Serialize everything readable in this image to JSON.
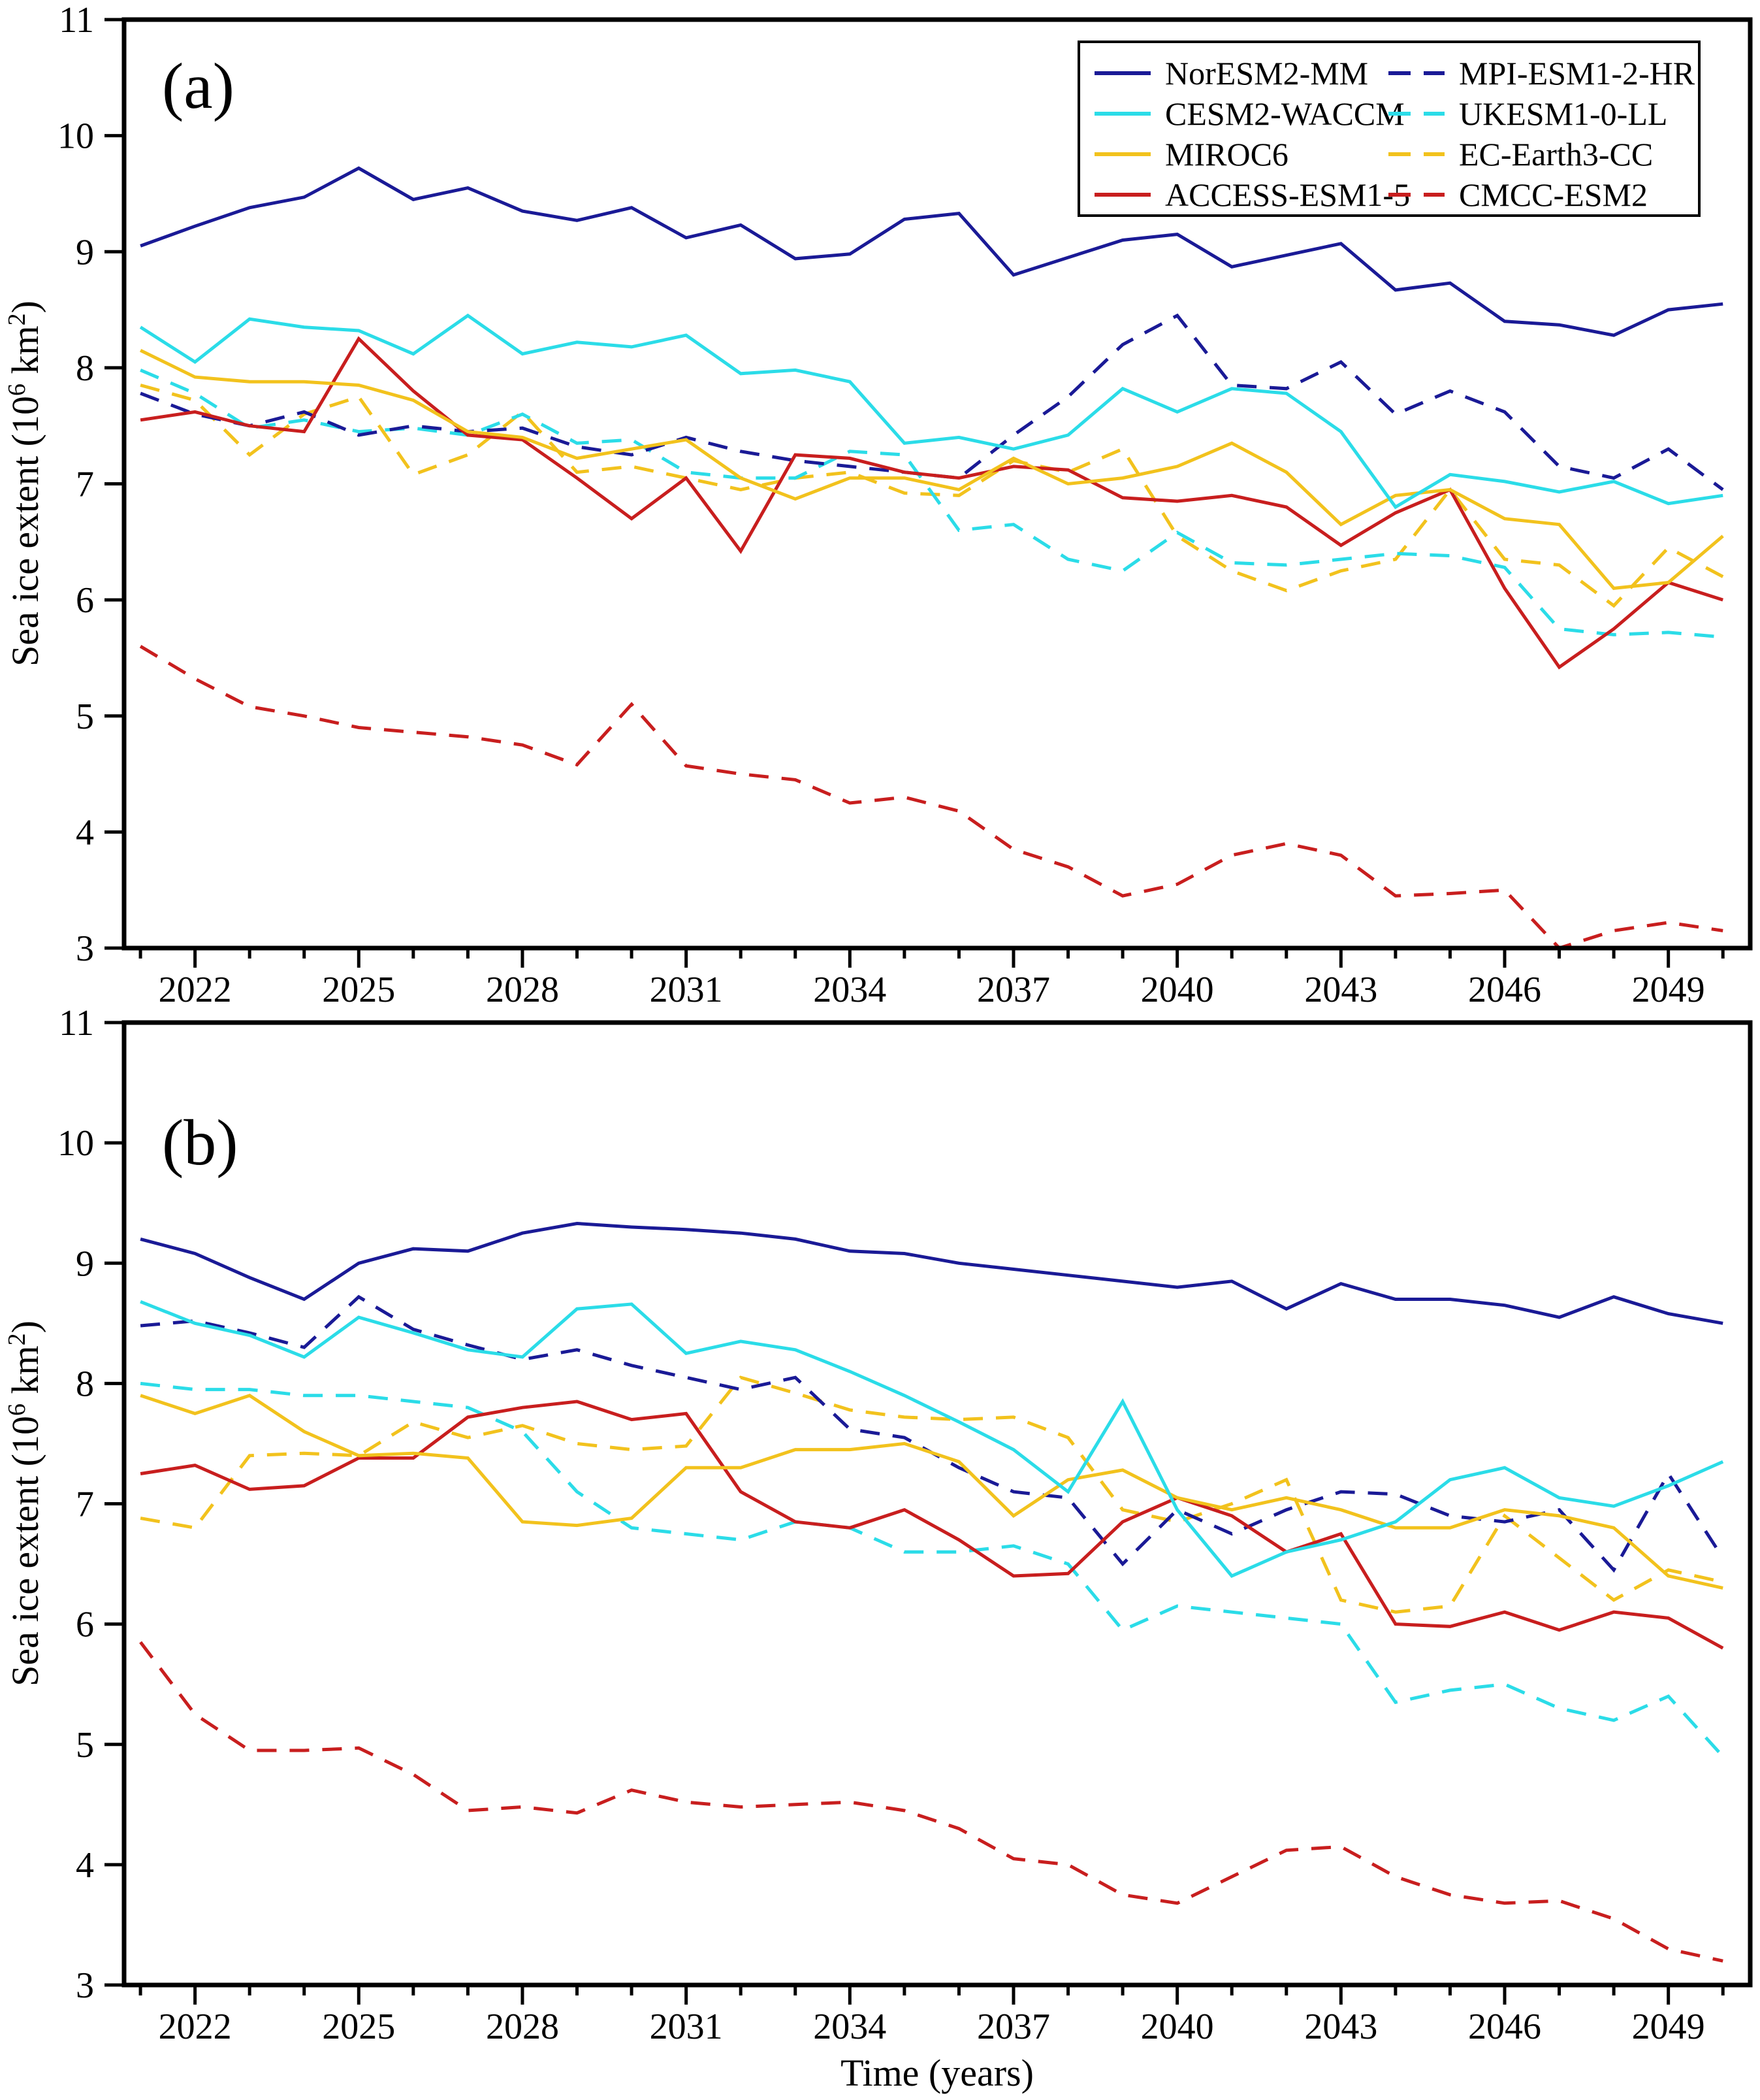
{
  "figure": {
    "x_axis_label": "Time (years)",
    "y_axis_label_parts": [
      "Sea ice extent (10",
      "6",
      " km",
      "2",
      ")"
    ],
    "background_color": "#ffffff",
    "axis_color": "#000000"
  },
  "legend": {
    "position": "top-right-panel-a",
    "columns": [
      [
        {
          "label": "NorESM2-MM",
          "color": "#1a1a96",
          "dashed": false
        },
        {
          "label": "CESM2-WACCM",
          "color": "#2bdce8",
          "dashed": false
        },
        {
          "label": "MIROC6",
          "color": "#f2c21d",
          "dashed": false
        },
        {
          "label": "ACCESS-ESM1-5",
          "color": "#c81e1e",
          "dashed": false
        }
      ],
      [
        {
          "label": "MPI-ESM1-2-HR",
          "color": "#1a1a96",
          "dashed": true
        },
        {
          "label": "UKESM1-0-LL",
          "color": "#2bdce8",
          "dashed": true
        },
        {
          "label": "EC-Earth3-CC",
          "color": "#f2c21d",
          "dashed": true
        },
        {
          "label": "CMCC-ESM2",
          "color": "#c81e1e",
          "dashed": true
        }
      ]
    ]
  },
  "chart_data": [
    {
      "type": "line",
      "panel_label": "(a)",
      "xlabel": "",
      "ylabel": "Sea ice extent (10^6 km^2)",
      "xlim": [
        2020.7,
        2050.5
      ],
      "ylim": [
        3,
        11
      ],
      "y_ticks": [
        3,
        4,
        5,
        6,
        7,
        8,
        9,
        10,
        11
      ],
      "x_ticks_major": [
        2022,
        2025,
        2028,
        2031,
        2034,
        2037,
        2040,
        2043,
        2046,
        2049
      ],
      "x_tick_labels": [
        "2022",
        "2025",
        "2028",
        "2031",
        "2034",
        "2037",
        "2040",
        "2043",
        "2046",
        "2049"
      ],
      "x": [
        2021,
        2022,
        2023,
        2024,
        2025,
        2026,
        2027,
        2028,
        2029,
        2030,
        2031,
        2032,
        2033,
        2034,
        2035,
        2036,
        2037,
        2038,
        2039,
        2040,
        2041,
        2042,
        2043,
        2044,
        2045,
        2046,
        2047,
        2048,
        2049,
        2050
      ],
      "grid": false,
      "legend_visible": true,
      "series": [
        {
          "name": "NorESM2-MM",
          "color": "#1a1a96",
          "dashed": false,
          "values": [
            9.05,
            9.22,
            9.38,
            9.47,
            9.72,
            9.45,
            9.55,
            9.35,
            9.27,
            9.38,
            9.12,
            9.23,
            8.94,
            8.98,
            9.28,
            9.33,
            8.8,
            8.95,
            9.1,
            9.15,
            8.87,
            8.97,
            9.07,
            8.67,
            8.73,
            8.4,
            8.37,
            8.28,
            8.5,
            8.55
          ]
        },
        {
          "name": "CESM2-WACCM",
          "color": "#2bdce8",
          "dashed": false,
          "values": [
            8.35,
            8.05,
            8.42,
            8.35,
            8.32,
            8.12,
            8.45,
            8.12,
            8.22,
            8.18,
            8.28,
            7.95,
            7.98,
            7.88,
            7.35,
            7.4,
            7.3,
            7.42,
            7.82,
            7.62,
            7.82,
            7.78,
            7.45,
            6.8,
            7.08,
            7.02,
            6.93,
            7.02,
            6.83,
            6.9
          ]
        },
        {
          "name": "MIROC6",
          "color": "#f2c21d",
          "dashed": false,
          "values": [
            8.15,
            7.92,
            7.88,
            7.88,
            7.85,
            7.72,
            7.45,
            7.4,
            7.22,
            7.3,
            7.38,
            7.05,
            6.87,
            7.05,
            7.05,
            6.95,
            7.22,
            7.0,
            7.05,
            7.15,
            7.35,
            7.1,
            6.65,
            6.9,
            6.95,
            6.7,
            6.65,
            6.1,
            6.15,
            6.55
          ]
        },
        {
          "name": "ACCESS-ESM1-5",
          "color": "#c81e1e",
          "dashed": false,
          "values": [
            7.55,
            7.62,
            7.5,
            7.45,
            8.25,
            7.8,
            7.42,
            7.38,
            7.05,
            6.7,
            7.05,
            6.42,
            7.25,
            7.22,
            7.1,
            7.05,
            7.15,
            7.12,
            6.88,
            6.85,
            6.9,
            6.8,
            6.47,
            6.75,
            6.95,
            6.1,
            5.42,
            5.75,
            6.15,
            6.0
          ]
        },
        {
          "name": "MPI-ESM1-2-HR",
          "color": "#1a1a96",
          "dashed": true,
          "values": [
            7.78,
            7.6,
            7.5,
            7.62,
            7.42,
            7.5,
            7.45,
            7.48,
            7.32,
            7.25,
            7.4,
            7.28,
            7.2,
            7.15,
            7.1,
            7.05,
            7.42,
            7.75,
            8.2,
            8.45,
            7.85,
            7.82,
            8.05,
            7.6,
            7.8,
            7.62,
            7.15,
            7.05,
            7.3,
            6.95
          ]
        },
        {
          "name": "UKESM1-0-LL",
          "color": "#2bdce8",
          "dashed": true,
          "values": [
            7.98,
            7.78,
            7.48,
            7.55,
            7.45,
            7.48,
            7.42,
            7.6,
            7.35,
            7.38,
            7.1,
            7.05,
            7.05,
            7.28,
            7.25,
            6.6,
            6.65,
            6.35,
            6.25,
            6.58,
            6.32,
            6.3,
            6.35,
            6.4,
            6.38,
            6.28,
            5.75,
            5.7,
            5.72,
            5.68
          ]
        },
        {
          "name": "EC-Earth3-CC",
          "color": "#f2c21d",
          "dashed": true,
          "values": [
            7.85,
            7.72,
            7.25,
            7.6,
            7.75,
            7.08,
            7.25,
            7.62,
            7.1,
            7.15,
            7.05,
            6.95,
            7.05,
            7.1,
            6.92,
            6.9,
            7.2,
            7.1,
            7.3,
            6.55,
            6.25,
            6.08,
            6.25,
            6.35,
            6.95,
            6.35,
            6.3,
            5.95,
            6.45,
            6.2
          ]
        },
        {
          "name": "CMCC-ESM2",
          "color": "#c81e1e",
          "dashed": true,
          "values": [
            5.6,
            5.32,
            5.08,
            5.0,
            4.9,
            4.86,
            4.82,
            4.75,
            4.58,
            5.1,
            4.57,
            4.5,
            4.45,
            4.25,
            4.3,
            4.18,
            3.85,
            3.7,
            3.45,
            3.55,
            3.8,
            3.9,
            3.8,
            3.45,
            3.47,
            3.5,
            3.0,
            3.15,
            3.22,
            3.15
          ]
        }
      ]
    },
    {
      "type": "line",
      "panel_label": "(b)",
      "xlabel": "Time (years)",
      "ylabel": "Sea ice extent (10^6 km^2)",
      "xlim": [
        2020.7,
        2050.5
      ],
      "ylim": [
        3,
        11
      ],
      "y_ticks": [
        3,
        4,
        5,
        6,
        7,
        8,
        9,
        10,
        11
      ],
      "x_ticks_major": [
        2022,
        2025,
        2028,
        2031,
        2034,
        2037,
        2040,
        2043,
        2046,
        2049
      ],
      "x_tick_labels": [
        "2022",
        "2025",
        "2028",
        "2031",
        "2034",
        "2037",
        "2040",
        "2043",
        "2046",
        "2049"
      ],
      "x": [
        2021,
        2022,
        2023,
        2024,
        2025,
        2026,
        2027,
        2028,
        2029,
        2030,
        2031,
        2032,
        2033,
        2034,
        2035,
        2036,
        2037,
        2038,
        2039,
        2040,
        2041,
        2042,
        2043,
        2044,
        2045,
        2046,
        2047,
        2048,
        2049,
        2050
      ],
      "grid": false,
      "legend_visible": false,
      "series": [
        {
          "name": "NorESM2-MM",
          "color": "#1a1a96",
          "dashed": false,
          "values": [
            9.2,
            9.08,
            8.88,
            8.7,
            9.0,
            9.12,
            9.1,
            9.25,
            9.33,
            9.3,
            9.28,
            9.25,
            9.2,
            9.1,
            9.08,
            9.0,
            8.95,
            8.9,
            8.85,
            8.8,
            8.85,
            8.62,
            8.83,
            8.7,
            8.7,
            8.65,
            8.55,
            8.72,
            8.58,
            8.5
          ]
        },
        {
          "name": "CESM2-WACCM",
          "color": "#2bdce8",
          "dashed": false,
          "values": [
            8.68,
            8.5,
            8.4,
            8.22,
            8.55,
            8.42,
            8.28,
            8.22,
            8.62,
            8.66,
            8.25,
            8.35,
            8.28,
            8.1,
            7.9,
            7.68,
            7.45,
            7.1,
            7.85,
            6.95,
            6.4,
            6.6,
            6.7,
            6.85,
            7.2,
            7.3,
            7.05,
            6.98,
            7.15,
            7.35
          ]
        },
        {
          "name": "MIROC6",
          "color": "#f2c21d",
          "dashed": false,
          "values": [
            7.9,
            7.75,
            7.9,
            7.6,
            7.4,
            7.42,
            7.38,
            6.85,
            6.82,
            6.88,
            7.3,
            7.3,
            7.45,
            7.45,
            7.5,
            7.35,
            6.9,
            7.2,
            7.28,
            7.05,
            6.95,
            7.05,
            6.95,
            6.8,
            6.8,
            6.95,
            6.9,
            6.8,
            6.4,
            6.3
          ]
        },
        {
          "name": "ACCESS-ESM1-5",
          "color": "#c81e1e",
          "dashed": false,
          "values": [
            7.25,
            7.32,
            7.12,
            7.15,
            7.38,
            7.38,
            7.72,
            7.8,
            7.85,
            7.7,
            7.75,
            7.1,
            6.85,
            6.8,
            6.95,
            6.7,
            6.4,
            6.42,
            6.85,
            7.05,
            6.9,
            6.6,
            6.75,
            6.0,
            5.98,
            6.1,
            5.95,
            6.1,
            6.05,
            5.8
          ]
        },
        {
          "name": "MPI-ESM1-2-HR",
          "color": "#1a1a96",
          "dashed": true,
          "values": [
            8.48,
            8.52,
            8.42,
            8.3,
            8.72,
            8.45,
            8.32,
            8.2,
            8.28,
            8.15,
            8.05,
            7.95,
            8.05,
            7.62,
            7.55,
            7.3,
            7.1,
            7.05,
            6.5,
            6.95,
            6.75,
            6.95,
            7.1,
            7.08,
            6.9,
            6.85,
            6.95,
            6.45,
            7.25,
            6.55
          ]
        },
        {
          "name": "UKESM1-0-LL",
          "color": "#2bdce8",
          "dashed": true,
          "values": [
            8.0,
            7.95,
            7.95,
            7.9,
            7.9,
            7.85,
            7.8,
            7.6,
            7.1,
            6.8,
            6.75,
            6.7,
            6.85,
            6.8,
            6.6,
            6.6,
            6.65,
            6.5,
            5.95,
            6.15,
            6.1,
            6.05,
            6.0,
            5.35,
            5.45,
            5.5,
            5.3,
            5.2,
            5.4,
            4.9
          ]
        },
        {
          "name": "EC-Earth3-CC",
          "color": "#f2c21d",
          "dashed": true,
          "values": [
            6.88,
            6.8,
            7.4,
            7.42,
            7.4,
            7.68,
            7.55,
            7.65,
            7.5,
            7.45,
            7.48,
            8.05,
            7.92,
            7.78,
            7.72,
            7.7,
            7.72,
            7.55,
            6.95,
            6.85,
            7.0,
            7.2,
            6.2,
            6.1,
            6.15,
            6.9,
            6.55,
            6.2,
            6.45,
            6.35
          ]
        },
        {
          "name": "CMCC-ESM2",
          "color": "#c81e1e",
          "dashed": true,
          "values": [
            5.85,
            5.25,
            4.95,
            4.95,
            4.97,
            4.75,
            4.45,
            4.48,
            4.43,
            4.62,
            4.52,
            4.48,
            4.5,
            4.52,
            4.45,
            4.3,
            4.05,
            4.0,
            3.75,
            3.68,
            3.9,
            4.12,
            4.15,
            3.9,
            3.75,
            3.68,
            3.7,
            3.55,
            3.3,
            3.2
          ]
        }
      ]
    }
  ]
}
